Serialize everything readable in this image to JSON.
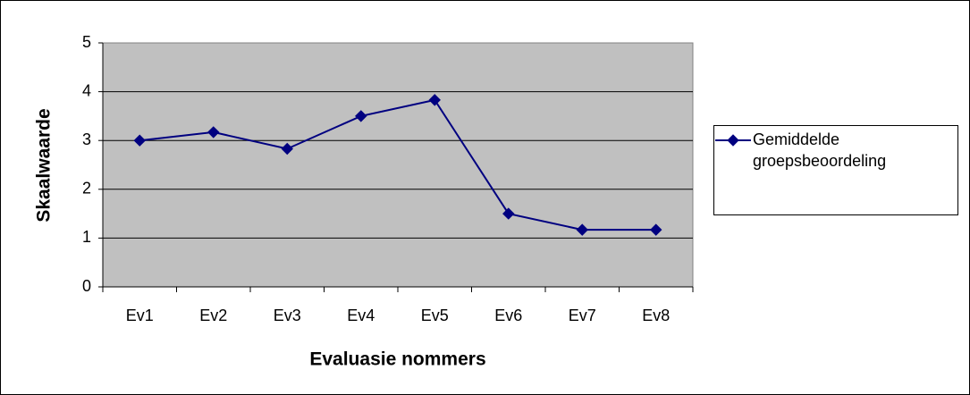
{
  "chart_data": {
    "type": "line",
    "x_label": "Evaluasie nommers",
    "y_label": "Skaalwaarde",
    "categories": [
      "Ev1",
      "Ev2",
      "Ev3",
      "Ev4",
      "Ev5",
      "Ev6",
      "Ev7",
      "Ev8"
    ],
    "series": [
      {
        "name": "Gemiddelde groepsbeoordeling",
        "color": "#000080",
        "values": [
          3.0,
          3.17,
          2.83,
          3.5,
          3.83,
          1.5,
          1.17,
          1.17
        ]
      }
    ],
    "ylim": [
      0,
      5
    ],
    "yticks": [
      0,
      1,
      2,
      3,
      4,
      5
    ],
    "grid": true,
    "legend": "right"
  }
}
